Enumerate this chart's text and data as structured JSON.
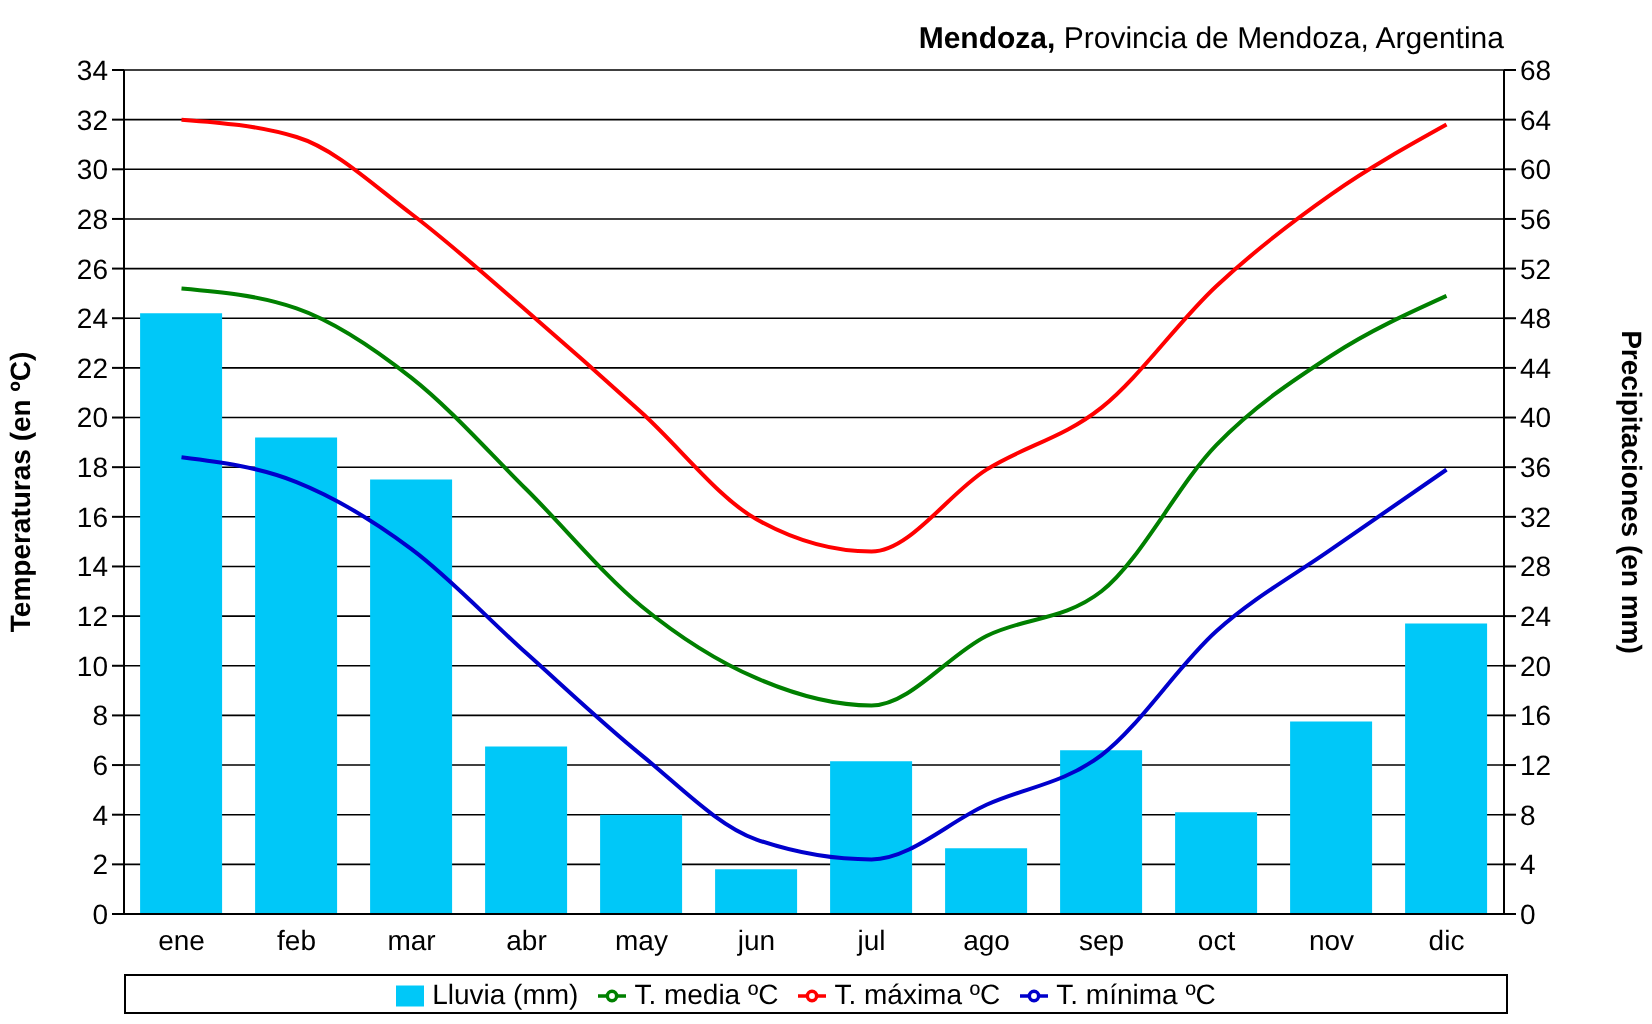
{
  "chart_data": {
    "type": "line",
    "title": "Mendoza, Provincia de Mendoza, Argentina",
    "ylabel": "Temperaturas (en ºC)",
    "y2label": "Precipitaciones (en mm)",
    "categories": [
      "ene",
      "feb",
      "mar",
      "abr",
      "may",
      "jun",
      "jul",
      "ago",
      "sep",
      "oct",
      "nov",
      "dic"
    ],
    "series": [
      {
        "name": "Lluvia (mm)",
        "type": "bar",
        "axis": "y2",
        "color": "#00c8f8",
        "values": [
          48.4,
          38.4,
          35,
          13.5,
          8,
          3.6,
          12.3,
          5.3,
          13.2,
          8.2,
          15.5,
          23.4
        ]
      },
      {
        "name": "T. media ºC",
        "color": "#008000",
        "values": [
          25.2,
          24.4,
          21.6,
          17.1,
          12.4,
          9.5,
          8.4,
          11.2,
          13.0,
          18.9,
          22.5,
          24.9
        ]
      },
      {
        "name": "T. máxima ºC",
        "color": "#ff0000",
        "values": [
          32.0,
          31.3,
          28.2,
          24.3,
          20.2,
          15.9,
          14.6,
          17.9,
          20.4,
          25.3,
          29.0,
          31.8
        ]
      },
      {
        "name": "T. mínima ºC",
        "color": "#0000cc",
        "values": [
          18.4,
          17.4,
          14.7,
          10.5,
          6.4,
          3.0,
          2.2,
          4.4,
          6.4,
          11.4,
          14.7,
          17.9
        ]
      }
    ],
    "ylim": [
      0,
      34
    ],
    "yticks": [
      0,
      2,
      4,
      6,
      8,
      10,
      12,
      14,
      16,
      18,
      20,
      22,
      24,
      26,
      28,
      30,
      32,
      34
    ],
    "y2lim": [
      0,
      68
    ],
    "y2ticks": [
      0,
      4,
      8,
      12,
      16,
      20,
      24,
      28,
      32,
      36,
      40,
      44,
      48,
      52,
      56,
      60,
      64,
      68
    ],
    "grid": "y",
    "legend": "bottom",
    "marker": "none",
    "line_style": "solid"
  }
}
